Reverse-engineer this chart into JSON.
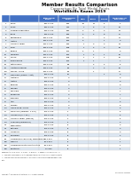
{
  "title1": "Member Results Comparison",
  "title2": "Comparison By Total Medal Points",
  "title3": "WorldSkills Kazan 2019",
  "header_bg": "#4472C4",
  "alt_row_bg": "#DCE6F1",
  "normal_row_bg": "#FFFFFF",
  "col_props": [
    0.038,
    0.148,
    0.098,
    0.098,
    0.052,
    0.052,
    0.052,
    0.105
  ],
  "header_row": [
    "",
    "",
    "Total Medal\nPoints",
    "Gold Medals\nPoints",
    "Gold",
    "Silver",
    "Bronze",
    "Medallion for\nExcellence"
  ],
  "rows": [
    [
      "1",
      "China",
      "867-1,000",
      "900",
      "16",
      "14",
      "5",
      "2"
    ],
    [
      "2",
      "Korea",
      "801-1,000",
      "444",
      "7",
      "6",
      "2",
      "22"
    ],
    [
      "3",
      "Russian Federation",
      "601-1,000",
      "384",
      "4",
      "4",
      "4",
      "21"
    ],
    [
      "3",
      "Japan",
      "601-1,000",
      "360",
      "4",
      "2",
      "8",
      "17"
    ],
    [
      "5",
      "Switzerland",
      "401-1,000",
      "252",
      "3",
      "",
      "4",
      "11"
    ],
    [
      "6",
      "Austria",
      "401-1,000",
      "252",
      "3",
      "",
      "1",
      "9"
    ],
    [
      "7",
      "Chinese Taipei",
      "401-1,000",
      "300",
      "1",
      "3",
      "3",
      "21"
    ],
    [
      "8",
      "Brazil",
      "401-1,000",
      "228",
      "1",
      "2",
      "3",
      "16"
    ],
    [
      "9",
      "Finland",
      "401-1,000",
      "192",
      "2",
      "1",
      "",
      "9"
    ],
    [
      "10",
      "Germany",
      "401-1,000",
      "204",
      "1",
      "2",
      "1",
      "15"
    ],
    [
      "11",
      "France",
      "401-1,000",
      "168",
      "1",
      "1",
      "2",
      "13"
    ],
    [
      "12",
      "Luxembourg",
      "401-1,000",
      "132",
      "1",
      "1",
      "",
      "7"
    ],
    [
      "13",
      "Netherlands",
      "401-1,000",
      "84",
      "",
      "2",
      "2",
      "5"
    ],
    [
      "13",
      "United Kingdom",
      "401-1,000",
      "36",
      "",
      "1",
      "2",
      "16"
    ],
    [
      "13r",
      "Macao, China",
      "401-1,000",
      "36",
      "",
      "1",
      "",
      "17"
    ],
    [
      "16",
      "Denmark (Czech, Aust)",
      "201-1,000",
      "12",
      "",
      "",
      "1",
      "9"
    ],
    [
      "17",
      "Australia",
      "201-1,000",
      "0",
      "",
      "",
      "",
      "9"
    ],
    [
      "17",
      "Austria",
      "201-1,000",
      "0",
      "",
      "",
      "",
      "9"
    ],
    [
      "17",
      "Belgium",
      "201-1,000",
      "0",
      "",
      "",
      "",
      "9"
    ],
    [
      "17",
      "Canada",
      "201-1,000",
      "0",
      "",
      "",
      "",
      "7"
    ],
    [
      "17",
      "Denmark",
      "201-1,000",
      "0",
      "",
      "",
      "",
      "7"
    ],
    [
      "17",
      "Singapore",
      "201-1,000",
      "0",
      "",
      "",
      "",
      "7"
    ],
    [
      "17",
      "Thailand",
      "201-1,000",
      "0",
      "",
      "",
      "",
      "7"
    ],
    [
      "17",
      "Italy",
      "201-1,000",
      "0",
      "",
      "",
      "",
      "6"
    ],
    [
      "17",
      "Norway",
      "201-1,000",
      "0",
      "",
      "",
      "",
      "6"
    ],
    [
      "17r",
      "Hong Kong, China",
      "201-1,000",
      "0",
      "",
      "",
      "",
      "6"
    ],
    [
      "27",
      "Malaysia (Sweden, C Eur)",
      "101-1,000",
      "-1",
      "",
      "",
      "",
      "5"
    ],
    [
      "27r",
      "Indonesia (C A Eur)",
      "101-1,000",
      "-1",
      "",
      "",
      "",
      "5"
    ],
    [
      "27r",
      "Chinese Taipei (Macao)",
      "101-1,000",
      "-1",
      "",
      "",
      "",
      "5"
    ],
    [
      "27r",
      "Thailand (Indonesia)",
      "101-1,000",
      "-1",
      "",
      "",
      "",
      "4"
    ],
    [
      "31",
      "Kazakhstan",
      "101-1,000",
      "-2",
      "",
      "",
      "",
      "3"
    ],
    [
      "31",
      "Vietnam",
      "101-1,000",
      "-2",
      "",
      "",
      "",
      "3"
    ],
    [
      "31",
      "Indonesia",
      "101-1,000",
      "-2",
      "",
      "",
      "",
      "3"
    ],
    [
      "34",
      "Colombia",
      "101-1,000",
      "-3",
      "",
      "",
      "",
      "2"
    ],
    [
      "35",
      "Combined Schools w/ Membership",
      "51-1,000",
      "-5",
      "",
      "",
      "",
      "1"
    ],
    [
      "35r",
      "Czechia",
      "51-1,000",
      "-5",
      "",
      "",
      "",
      "1"
    ],
    [
      "35r",
      "Combined Youth Construction",
      "51-1,000",
      "-5",
      "",
      "",
      "",
      "1"
    ],
    [
      "35r",
      "E-Estonia*",
      "1-1,000",
      "-5",
      "",
      "",
      "",
      "1"
    ]
  ],
  "footer_lines": [
    "Medal Points Score: Gold = 3, Silver = 2, Bronze = 1, Medallion for Excellence = 0",
    "r = Competed as a Member of the Member, therefore not included in country results",
    "* = competition provided courtesy of WorldSkills Internation at www.worldskills.org",
    "Note"
  ],
  "date_text": "27-08-2019 11:30am",
  "copyright_text": "Copyright © WorldSkills International 2019. All rights reserved."
}
